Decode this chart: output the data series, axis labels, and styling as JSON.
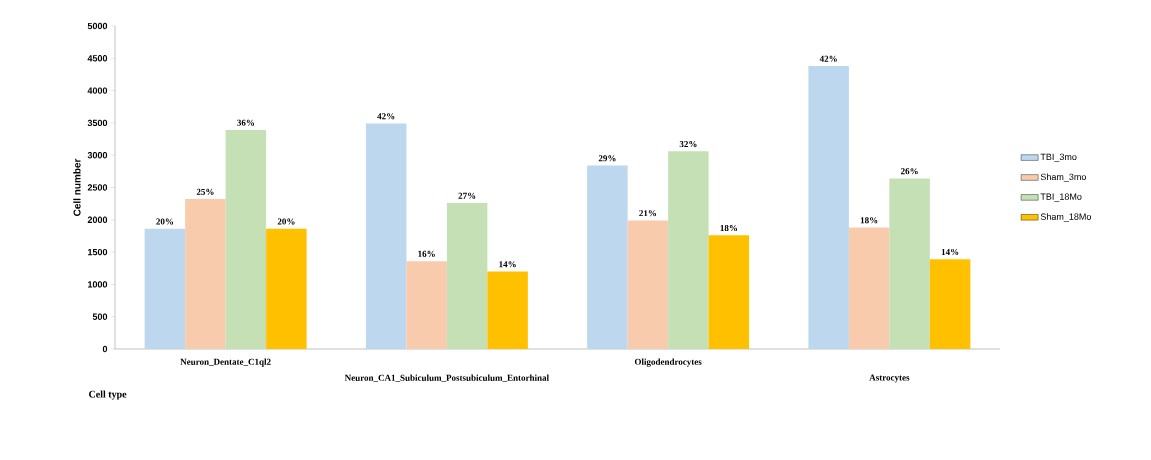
{
  "chart_data": {
    "type": "bar",
    "xlabel": "Cell type",
    "ylabel": "Cell number",
    "categories": [
      "Neuron_Dentate_C1ql2",
      "Neuron_CA1_Subiculum_Postsubiculum_Entorhinal",
      "Oligodendrocytes",
      "Astrocytes"
    ],
    "series": [
      {
        "name": "TBI_3mo",
        "color": "#bdd7ee",
        "values": [
          1860,
          3490,
          2840,
          4380
        ]
      },
      {
        "name": "Sham_3mo",
        "color": "#f8cbad",
        "values": [
          2320,
          1360,
          1990,
          1880
        ]
      },
      {
        "name": "TBI_18Mo",
        "color": "#c5e0b4",
        "values": [
          3390,
          2260,
          3060,
          2640
        ]
      },
      {
        "name": "Sham_18Mo",
        "color": "#ffc000",
        "values": [
          1860,
          1200,
          1760,
          1390
        ]
      }
    ],
    "annotations": [
      "20%",
      "25%",
      "36%",
      "20%",
      "42%",
      "16%",
      "27%",
      "14%",
      "29%",
      "21%",
      "32%",
      "18%",
      "42%",
      "18%",
      "26%",
      "14%"
    ],
    "ylim": [
      0,
      5000
    ],
    "yticks": [
      0,
      500,
      1000,
      1500,
      2000,
      2500,
      3000,
      3500,
      4000,
      4500,
      5000
    ],
    "legend": "right"
  }
}
